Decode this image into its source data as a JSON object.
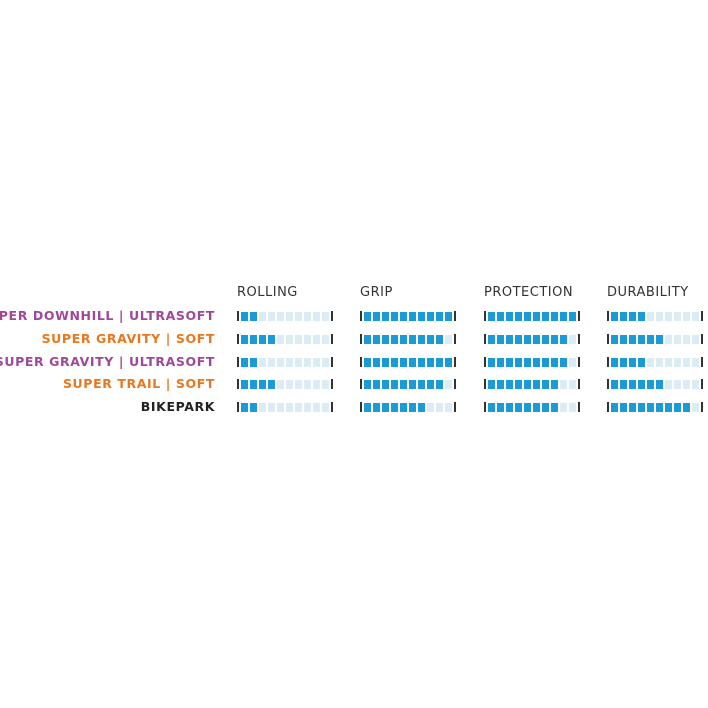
{
  "chart_data": {
    "type": "table",
    "columns": [
      "ROLLING",
      "GRIP",
      "PROTECTION",
      "DURABILITY"
    ],
    "max": 10,
    "rows": [
      {
        "name": "SUPER DOWNHILL | ULTRASOFT",
        "color": "#a0479a",
        "values": [
          2,
          10,
          10,
          4
        ]
      },
      {
        "name": "SUPER GRAVITY | SOFT",
        "color": "#e8781e",
        "values": [
          4,
          9,
          9,
          6
        ]
      },
      {
        "name": "SUPER GRAVITY | ULTRASOFT",
        "color": "#a0479a",
        "values": [
          2,
          10,
          9,
          4
        ]
      },
      {
        "name": "SUPER TRAIL | SOFT",
        "color": "#e8781e",
        "values": [
          4,
          9,
          8,
          6
        ]
      },
      {
        "name": "BIKEPARK",
        "color": "#222222",
        "values": [
          2,
          7,
          8,
          9
        ]
      }
    ],
    "filled_color": "#1a9ad6",
    "empty_color": "#dcecf5"
  }
}
